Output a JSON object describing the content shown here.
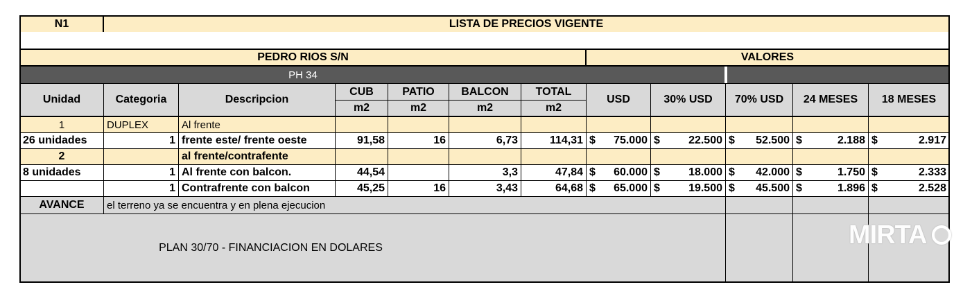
{
  "header": {
    "code": "N1",
    "title": "LISTA DE PRECIOS VIGENTE"
  },
  "project": {
    "name": "PEDRO RIOS S/N",
    "values_label": "VALORES",
    "ph": "PH 34"
  },
  "columns": {
    "unidad": "Unidad",
    "categoria": "Categoria",
    "descripcion": "Descripcion",
    "cub": "CUB",
    "patio": "PATIO",
    "balcon": "BALCON",
    "total": "TOTAL",
    "unit_m2": "m2",
    "usd": "USD",
    "usd30": "30% USD",
    "usd70": "70% USD",
    "m24": "24 MESES",
    "m18": "18 MESES"
  },
  "currency": "$",
  "groups": [
    {
      "unidad": "1",
      "categoria": "DUPLEX",
      "descripcion": "Al frente"
    },
    {
      "unidad": "2",
      "categoria": "",
      "descripcion": "al frente/contrafente"
    }
  ],
  "rows": [
    {
      "unidad": "26 unidades",
      "categoria": "1",
      "descripcion": "frente este/ frente oeste",
      "cub": "91,58",
      "patio": "16",
      "balcon": "6,73",
      "total": "114,31",
      "usd": "75.000",
      "usd30": "22.500",
      "usd70": "52.500",
      "m24": "2.188",
      "m18": "2.917"
    },
    {
      "unidad": "8 unidades",
      "categoria": "1",
      "descripcion": "Al frente con balcon.",
      "cub": "44,54",
      "patio": "",
      "balcon": "3,3",
      "total": "47,84",
      "usd": "60.000",
      "usd30": "18.000",
      "usd70": "42.000",
      "m24": "1.750",
      "m18": "2.333"
    },
    {
      "unidad": "",
      "categoria": "1",
      "descripcion": "Contrafrente con balcon",
      "cub": "45,25",
      "patio": "16",
      "balcon": "3,43",
      "total": "64,68",
      "usd": "65.000",
      "usd30": "19.500",
      "usd70": "45.500",
      "m24": "1.896",
      "m18": "2.528"
    }
  ],
  "avance": {
    "label": "AVANCE",
    "text": "el terreno ya se encuentra  y en plena ejecucion"
  },
  "plan": "PLAN 30/70 - FINANCIACION EN DOLARES",
  "watermark": "MIRTA",
  "colors": {
    "cream": "#fdedc4",
    "grey": "#d9d9d9",
    "dark": "#595959"
  }
}
